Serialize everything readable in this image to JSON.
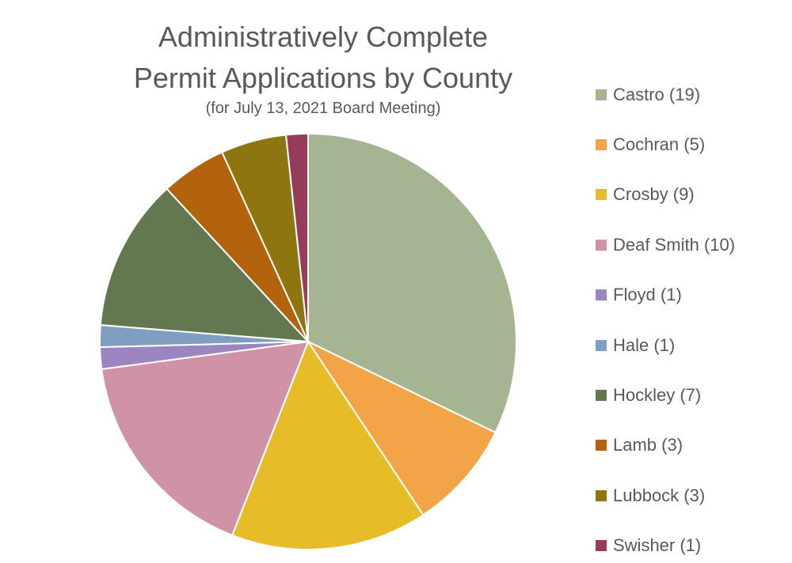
{
  "chart_data": {
    "type": "pie",
    "title_line1": "Administratively Complete",
    "title_line2": "Permit Applications by County",
    "subtitle": "(for July 13, 2021 Board Meeting)",
    "legend_position": "right",
    "slices": [
      {
        "label": "Castro (19)",
        "name": "Castro",
        "value": 19,
        "color": "#A5B592"
      },
      {
        "label": "Cochran (5)",
        "name": "Cochran",
        "value": 5,
        "color": "#F3A447"
      },
      {
        "label": "Crosby (9)",
        "name": "Crosby",
        "value": 9,
        "color": "#E7BC29"
      },
      {
        "label": "Deaf Smith (10)",
        "name": "Deaf Smith",
        "value": 10,
        "color": "#D092A7"
      },
      {
        "label": "Floyd (1)",
        "name": "Floyd",
        "value": 1,
        "color": "#9C85C0"
      },
      {
        "label": "Hale (1)",
        "name": "Hale",
        "value": 1,
        "color": "#809EC2"
      },
      {
        "label": "Hockley (7)",
        "name": "Hockley",
        "value": 7,
        "color": "#637750"
      },
      {
        "label": "Lamb (3)",
        "name": "Lamb",
        "value": 3,
        "color": "#B3620E"
      },
      {
        "label": "Lubbock (3)",
        "name": "Lubbock",
        "value": 3,
        "color": "#8E7510"
      },
      {
        "label": "Swisher (1)",
        "name": "Swisher",
        "value": 1,
        "color": "#963B5A"
      }
    ]
  }
}
